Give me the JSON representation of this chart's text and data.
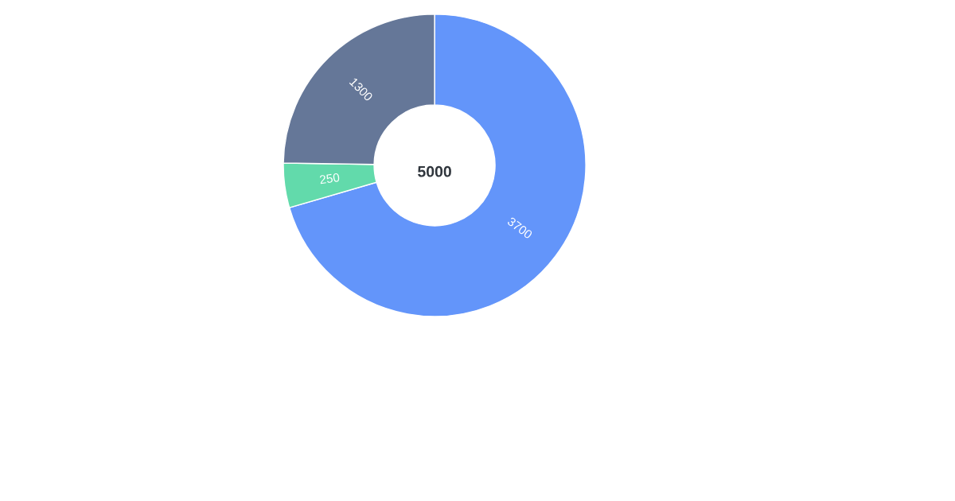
{
  "chart_data": {
    "type": "donut",
    "categories": [
      null,
      null,
      null
    ],
    "values": [
      3700,
      250,
      1300
    ],
    "colors": [
      "#6395fa",
      "#62daab",
      "#657798"
    ],
    "data_labels": true,
    "annotations": [
      "5000"
    ]
  }
}
